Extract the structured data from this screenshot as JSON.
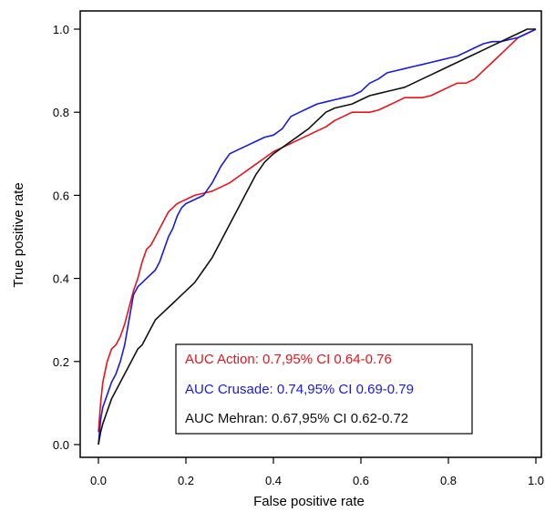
{
  "chart_data": {
    "type": "line",
    "title": "",
    "xlabel": "False positive rate",
    "ylabel": "True positive rate",
    "xlim": [
      0,
      1
    ],
    "ylim": [
      0,
      1
    ],
    "x_ticks": [
      "0.0",
      "0.2",
      "0.4",
      "0.6",
      "0.8",
      "1.0"
    ],
    "y_ticks": [
      "0.0",
      "0.2",
      "0.4",
      "0.6",
      "0.8",
      "1.0"
    ],
    "grid": false,
    "legend_position": "bottom-center",
    "series": [
      {
        "name": "AUC Action: 0.7,95% CI 0.64-0.76",
        "color": "#e8141c",
        "x": [
          0,
          0.005,
          0.01,
          0.02,
          0.03,
          0.04,
          0.05,
          0.06,
          0.07,
          0.08,
          0.09,
          0.1,
          0.11,
          0.12,
          0.13,
          0.14,
          0.15,
          0.16,
          0.17,
          0.18,
          0.19,
          0.2,
          0.22,
          0.24,
          0.26,
          0.28,
          0.3,
          0.32,
          0.34,
          0.36,
          0.38,
          0.4,
          0.42,
          0.44,
          0.46,
          0.48,
          0.5,
          0.52,
          0.54,
          0.56,
          0.58,
          0.6,
          0.62,
          0.64,
          0.66,
          0.68,
          0.7,
          0.72,
          0.74,
          0.76,
          0.78,
          0.8,
          0.82,
          0.84,
          0.86,
          0.88,
          0.9,
          0.92,
          0.94,
          0.96,
          0.98,
          1.0
        ],
        "y": [
          0.03,
          0.1,
          0.15,
          0.2,
          0.23,
          0.24,
          0.26,
          0.29,
          0.33,
          0.37,
          0.4,
          0.44,
          0.47,
          0.48,
          0.5,
          0.52,
          0.54,
          0.56,
          0.57,
          0.58,
          0.585,
          0.59,
          0.6,
          0.605,
          0.61,
          0.62,
          0.63,
          0.645,
          0.66,
          0.675,
          0.69,
          0.705,
          0.715,
          0.725,
          0.735,
          0.745,
          0.755,
          0.765,
          0.78,
          0.79,
          0.8,
          0.8,
          0.8,
          0.805,
          0.815,
          0.825,
          0.835,
          0.835,
          0.835,
          0.84,
          0.85,
          0.86,
          0.87,
          0.87,
          0.88,
          0.9,
          0.92,
          0.94,
          0.96,
          0.98,
          0.99,
          1.0
        ]
      },
      {
        "name": "AUC Crusade: 0.74,95% CI 0.69-0.79",
        "color": "#1a1ae0",
        "x": [
          0,
          0.005,
          0.01,
          0.02,
          0.03,
          0.04,
          0.05,
          0.06,
          0.07,
          0.08,
          0.09,
          0.1,
          0.11,
          0.12,
          0.13,
          0.14,
          0.15,
          0.16,
          0.17,
          0.18,
          0.19,
          0.2,
          0.22,
          0.24,
          0.26,
          0.28,
          0.3,
          0.32,
          0.34,
          0.36,
          0.38,
          0.4,
          0.42,
          0.44,
          0.46,
          0.48,
          0.5,
          0.52,
          0.54,
          0.56,
          0.58,
          0.6,
          0.62,
          0.64,
          0.66,
          0.68,
          0.7,
          0.72,
          0.74,
          0.76,
          0.78,
          0.8,
          0.82,
          0.84,
          0.86,
          0.88,
          0.9,
          0.92,
          0.94,
          0.96,
          0.98,
          1.0
        ],
        "y": [
          0.0,
          0.06,
          0.09,
          0.12,
          0.15,
          0.17,
          0.2,
          0.24,
          0.3,
          0.36,
          0.38,
          0.39,
          0.4,
          0.41,
          0.42,
          0.44,
          0.47,
          0.5,
          0.52,
          0.55,
          0.57,
          0.58,
          0.59,
          0.6,
          0.63,
          0.67,
          0.7,
          0.71,
          0.72,
          0.73,
          0.74,
          0.745,
          0.76,
          0.79,
          0.8,
          0.81,
          0.82,
          0.825,
          0.83,
          0.835,
          0.84,
          0.85,
          0.87,
          0.88,
          0.895,
          0.9,
          0.905,
          0.91,
          0.915,
          0.92,
          0.925,
          0.93,
          0.935,
          0.945,
          0.955,
          0.965,
          0.97,
          0.97,
          0.975,
          0.98,
          0.99,
          1.0
        ]
      },
      {
        "name": "AUC Mehran: 0.67,95% CI 0.62-0.72",
        "color": "#111111",
        "x": [
          0,
          0.005,
          0.01,
          0.02,
          0.03,
          0.04,
          0.05,
          0.06,
          0.07,
          0.08,
          0.09,
          0.1,
          0.11,
          0.12,
          0.13,
          0.14,
          0.15,
          0.16,
          0.17,
          0.18,
          0.19,
          0.2,
          0.22,
          0.24,
          0.26,
          0.28,
          0.3,
          0.32,
          0.34,
          0.36,
          0.38,
          0.4,
          0.42,
          0.44,
          0.46,
          0.48,
          0.5,
          0.52,
          0.54,
          0.56,
          0.58,
          0.6,
          0.62,
          0.64,
          0.66,
          0.68,
          0.7,
          0.72,
          0.74,
          0.76,
          0.78,
          0.8,
          0.82,
          0.84,
          0.86,
          0.88,
          0.9,
          0.92,
          0.94,
          0.96,
          0.98,
          1.0
        ],
        "y": [
          0.0,
          0.03,
          0.05,
          0.08,
          0.11,
          0.13,
          0.15,
          0.17,
          0.19,
          0.21,
          0.23,
          0.24,
          0.26,
          0.28,
          0.3,
          0.31,
          0.32,
          0.33,
          0.34,
          0.35,
          0.36,
          0.37,
          0.39,
          0.42,
          0.45,
          0.49,
          0.53,
          0.57,
          0.61,
          0.65,
          0.68,
          0.7,
          0.715,
          0.73,
          0.745,
          0.76,
          0.78,
          0.8,
          0.81,
          0.815,
          0.82,
          0.83,
          0.84,
          0.845,
          0.85,
          0.855,
          0.86,
          0.87,
          0.88,
          0.89,
          0.9,
          0.91,
          0.92,
          0.93,
          0.94,
          0.95,
          0.96,
          0.97,
          0.98,
          0.99,
          1.0,
          1.0
        ]
      }
    ]
  }
}
